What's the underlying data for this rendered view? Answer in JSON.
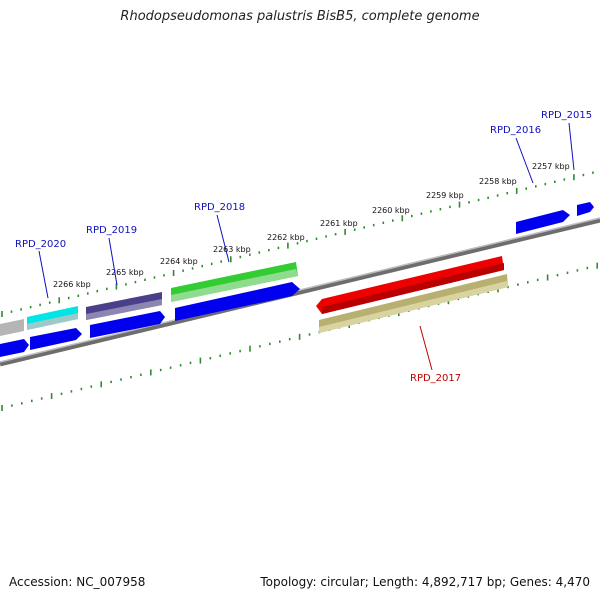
{
  "title": "Rhodopseudomonas palustris BisB5, complete genome",
  "footer": {
    "accession": "Accession: NC_007958",
    "summary": "Topology: circular; Length: 4,892,717 bp; Genes: 4,470"
  },
  "colors": {
    "backbone": "#8a8a8a",
    "ticks": "#2e8b2e",
    "forward_label": "#1010c0",
    "reverse_label": "#c00000"
  },
  "tick_labels": [
    "2257 kbp",
    "2258 kbp",
    "2259 kbp",
    "2260 kbp",
    "2261 kbp",
    "2262 kbp",
    "2263 kbp",
    "2264 kbp",
    "2265 kbp",
    "2266 kbp"
  ],
  "gene_labels": [
    {
      "name": "RPD_2015",
      "strand": "forward"
    },
    {
      "name": "RPD_2016",
      "strand": "forward"
    },
    {
      "name": "RPD_2018",
      "strand": "forward"
    },
    {
      "name": "RPD_2019",
      "strand": "forward"
    },
    {
      "name": "RPD_2020",
      "strand": "forward"
    },
    {
      "name": "RPD_2017",
      "strand": "reverse"
    }
  ]
}
